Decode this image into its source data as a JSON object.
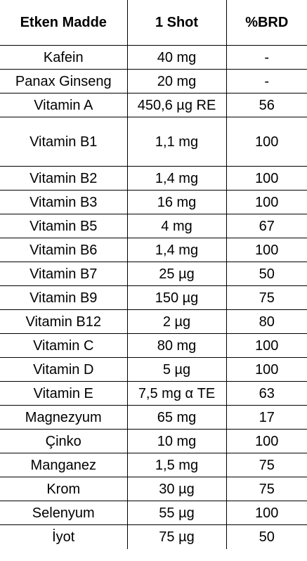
{
  "headers": [
    "Etken Madde",
    "1 Shot",
    "%BRD"
  ],
  "rows": [
    {
      "name": "Kafein",
      "amount": "40 mg",
      "brd": "-"
    },
    {
      "name": "Panax Ginseng",
      "amount": "20 mg",
      "brd": "-"
    },
    {
      "name": "Vitamin A",
      "amount": "450,6 µg RE",
      "brd": "56"
    },
    {
      "name": "Vitamin B1",
      "amount": "1,1 mg",
      "brd": "100"
    },
    {
      "name": "Vitamin B2",
      "amount": "1,4 mg",
      "brd": "100"
    },
    {
      "name": "Vitamin B3",
      "amount": "16 mg",
      "brd": "100"
    },
    {
      "name": "Vitamin B5",
      "amount": "4 mg",
      "brd": "67"
    },
    {
      "name": "Vitamin B6",
      "amount": "1,4 mg",
      "brd": "100"
    },
    {
      "name": "Vitamin B7",
      "amount": "25 µg",
      "brd": "50"
    },
    {
      "name": "Vitamin B9",
      "amount": "150 µg",
      "brd": "75"
    },
    {
      "name": "Vitamin B12",
      "amount": "2 µg",
      "brd": "80"
    },
    {
      "name": "Vitamin C",
      "amount": "80 mg",
      "brd": "100"
    },
    {
      "name": "Vitamin D",
      "amount": "5 µg",
      "brd": "100"
    },
    {
      "name": "Vitamin E",
      "amount": "7,5 mg α TE",
      "brd": "63"
    },
    {
      "name": "Magnezyum",
      "amount": "65 mg",
      "brd": "17"
    },
    {
      "name": "Çinko",
      "amount": "10 mg",
      "brd": "100"
    },
    {
      "name": "Manganez",
      "amount": "1,5 mg",
      "brd": "75"
    },
    {
      "name": "Krom",
      "amount": "30 µg",
      "brd": "75"
    },
    {
      "name": "Selenyum",
      "amount": "55 µg",
      "brd": "100"
    },
    {
      "name": "İyot",
      "amount": "75 µg",
      "brd": "50"
    }
  ]
}
